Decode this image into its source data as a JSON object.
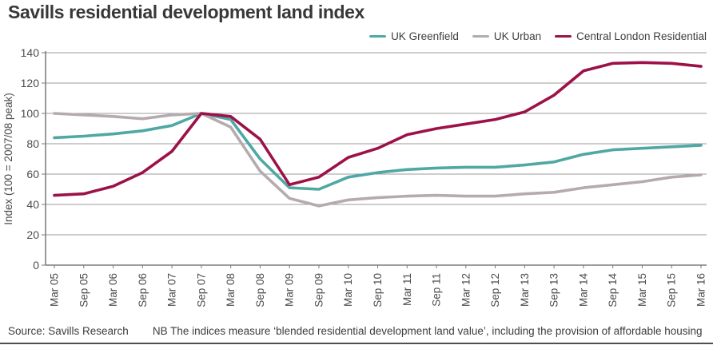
{
  "title": "Savills residential development land index",
  "legend": [
    {
      "label": "UK Greenfield",
      "color": "#4FA8A4"
    },
    {
      "label": "UK Urban",
      "color": "#B5ABAF"
    },
    {
      "label": "Central London Residential",
      "color": "#9C1248"
    }
  ],
  "footer": {
    "source": "Source: Savills Research",
    "note": "NB The indices measure ‘blended residential development land value’, including the provision of affordable housing"
  },
  "chart_data": {
    "type": "line",
    "title": "Savills residential development land index",
    "xlabel": "",
    "ylabel": "Index (100 = 2007/08 peak)",
    "ylim": [
      0,
      140
    ],
    "ytick_interval": 20,
    "grid": "horizontal",
    "legend_position": "top-right",
    "categories": [
      "Mar 05",
      "Sep 05",
      "Mar 06",
      "Sep 06",
      "Mar 07",
      "Sep 07",
      "Mar 08",
      "Sep 08",
      "Mar 09",
      "Sep 09",
      "Mar 10",
      "Sep 10",
      "Mar 11",
      "Sep 11",
      "Mar 12",
      "Sep 12",
      "Mar 13",
      "Sep 13",
      "Mar 14",
      "Sep 14",
      "Mar 15",
      "Sep 15",
      "Mar 16"
    ],
    "series": [
      {
        "name": "UK Greenfield",
        "color": "#4FA8A4",
        "values": [
          84,
          85,
          86.5,
          88.5,
          92,
          100,
          96,
          70,
          51,
          50,
          58,
          61,
          63,
          64,
          64.5,
          64.5,
          66,
          68,
          73,
          76,
          77,
          78,
          79
        ]
      },
      {
        "name": "UK Urban",
        "color": "#B5ABAF",
        "values": [
          100,
          99,
          98,
          96.5,
          99,
          100,
          91,
          62,
          44,
          39,
          43,
          44.5,
          45.5,
          46,
          45.5,
          45.5,
          47,
          48,
          51,
          53,
          55,
          58,
          59.5
        ]
      },
      {
        "name": "Central London Residential",
        "color": "#9C1248",
        "values": [
          46,
          47,
          52,
          61,
          75,
          100,
          98,
          83,
          53,
          58,
          71,
          77,
          86,
          90,
          93,
          96,
          101,
          112,
          128,
          133,
          133.5,
          133,
          131
        ]
      }
    ],
    "axis_text_color": "#4d4d4d",
    "gridline_color": "#9b9b9b",
    "axis_line_color": "#7a7a7a"
  }
}
